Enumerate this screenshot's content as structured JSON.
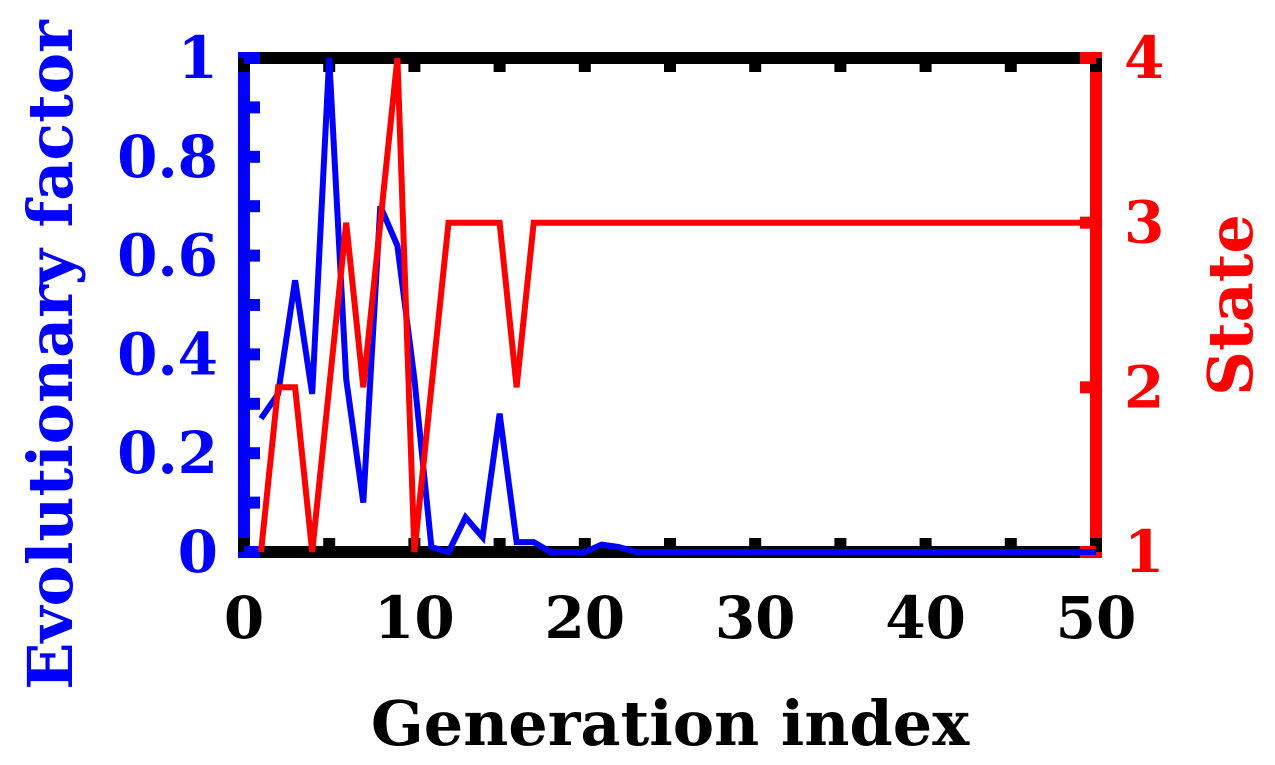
{
  "chart_data": {
    "type": "line",
    "title": "",
    "xlabel": "Generation index",
    "ylabel_left": "Evolutionary factor",
    "ylabel_right": "State",
    "xlim": [
      0,
      50
    ],
    "ylim_left": [
      0,
      1
    ],
    "ylim_right": [
      1,
      4
    ],
    "xticks": [
      "0",
      "10",
      "20",
      "30",
      "40",
      "50"
    ],
    "yticks_left": [
      "0",
      "0.2",
      "0.4",
      "0.6",
      "0.8",
      "1"
    ],
    "yticks_right": [
      "1",
      "2",
      "3",
      "4"
    ],
    "grid": false,
    "legend": "none",
    "colors": {
      "left": "#0000ff",
      "right": "#ff0000",
      "frame": "#000000"
    },
    "series": [
      {
        "axis": "left",
        "color": "#0000ff",
        "x": [
          1,
          2,
          3,
          4,
          5,
          6,
          7,
          8,
          9,
          10,
          11,
          12,
          13,
          14,
          15,
          16,
          17,
          18,
          19,
          20,
          21,
          22,
          23,
          24,
          25,
          26,
          27,
          28,
          29,
          30,
          31,
          32,
          33,
          34,
          35,
          36,
          37,
          38,
          39,
          40,
          41,
          42,
          43,
          44,
          45,
          46,
          47,
          48,
          49,
          50
        ],
        "values": [
          0.27,
          0.32,
          0.55,
          0.32,
          1.0,
          0.35,
          0.1,
          0.7,
          0.62,
          0.35,
          0.01,
          0.0,
          0.07,
          0.03,
          0.28,
          0.02,
          0.02,
          0.0,
          0.0,
          0.0,
          0.015,
          0.01,
          0.0,
          0.0,
          0.0,
          0.0,
          0.0,
          0.0,
          0.0,
          0.0,
          0.0,
          0.0,
          0.0,
          0.0,
          0.0,
          0.0,
          0.0,
          0.0,
          0.0,
          0.0,
          0.0,
          0.0,
          0.0,
          0.0,
          0.0,
          0.0,
          0.0,
          0.0,
          0.0,
          0.0
        ]
      },
      {
        "axis": "right",
        "color": "#ff0000",
        "x": [
          1,
          2,
          3,
          4,
          5,
          6,
          7,
          8,
          9,
          10,
          11,
          12,
          13,
          14,
          15,
          16,
          17,
          18,
          19,
          20,
          21,
          22,
          23,
          24,
          25,
          26,
          27,
          28,
          29,
          30,
          31,
          32,
          33,
          34,
          35,
          36,
          37,
          38,
          39,
          40,
          41,
          42,
          43,
          44,
          45,
          46,
          47,
          48,
          49,
          50
        ],
        "values": [
          1,
          2,
          2,
          1,
          2,
          3,
          2,
          3,
          4,
          1,
          2,
          3,
          3,
          3,
          3,
          2,
          3,
          3,
          3,
          3,
          3,
          3,
          3,
          3,
          3,
          3,
          3,
          3,
          3,
          3,
          3,
          3,
          3,
          3,
          3,
          3,
          3,
          3,
          3,
          3,
          3,
          3,
          3,
          3,
          3,
          3,
          3,
          3,
          3,
          3
        ]
      }
    ]
  }
}
